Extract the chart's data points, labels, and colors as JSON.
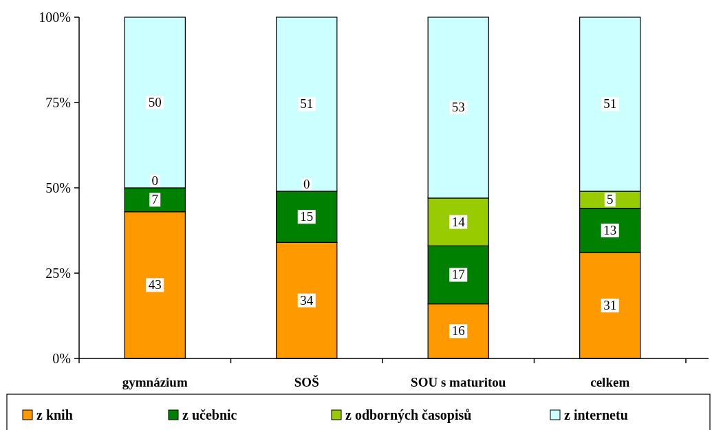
{
  "chart_data": {
    "type": "bar",
    "stacked": true,
    "categories": [
      "gymnázium",
      "SOŠ",
      "SOU s maturitou",
      "celkem"
    ],
    "series": [
      {
        "name": "z knih",
        "color": "#ff9900",
        "values": [
          43,
          34,
          16,
          31
        ],
        "value_labels": [
          "43",
          "34",
          "16",
          "31"
        ]
      },
      {
        "name": "z učebnic",
        "color": "#008000",
        "values": [
          7,
          15,
          17,
          13
        ],
        "value_labels": [
          "7",
          "15",
          "17",
          "13"
        ]
      },
      {
        "name": "z odborných časopisů",
        "color": "#99cc00",
        "values": [
          0,
          0,
          14,
          5
        ],
        "value_labels": [
          null,
          null,
          "14",
          "5"
        ]
      },
      {
        "name": "z internetu",
        "color": "#ccffff",
        "values": [
          50,
          51,
          53,
          51
        ],
        "value_labels": [
          "50",
          "51",
          "53",
          "51"
        ]
      }
    ],
    "annotations": [
      {
        "text": "0",
        "x": "gymnázium",
        "y": 50
      },
      {
        "text": "0",
        "x": "SOŠ",
        "y": 49
      }
    ],
    "ylim": [
      0,
      100
    ],
    "yticks": [
      {
        "value": 0,
        "label": "0%"
      },
      {
        "value": 25,
        "label": "25%"
      },
      {
        "value": 50,
        "label": "50%"
      },
      {
        "value": 75,
        "label": "75%"
      },
      {
        "value": 100,
        "label": "100%"
      }
    ],
    "legend": "bottom",
    "grid": false
  }
}
